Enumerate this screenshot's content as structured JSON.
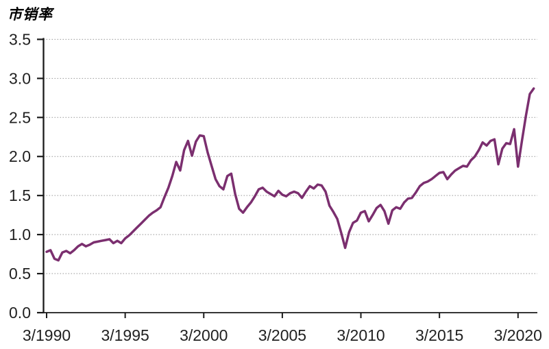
{
  "chart_data": {
    "type": "line",
    "title": "市销率",
    "xlabel": "",
    "ylabel": "",
    "ylim": [
      0.0,
      3.5
    ],
    "y_ticks": [
      0.0,
      0.5,
      1.0,
      1.5,
      2.0,
      2.5,
      3.0,
      3.5
    ],
    "x_tick_labels": [
      "3/1990",
      "3/1995",
      "3/2000",
      "3/2005",
      "3/2010",
      "3/2015",
      "3/2020"
    ],
    "grid": "horizontal-dotted",
    "legend_position": "none",
    "series_name": "市销率",
    "line_color": "#7B2F6F",
    "grid_color": "#9a9a9a",
    "axis_color": "#1a1a1a",
    "x": [
      "3/1990",
      "6/1990",
      "9/1990",
      "12/1990",
      "3/1991",
      "6/1991",
      "9/1991",
      "12/1991",
      "3/1992",
      "6/1992",
      "9/1992",
      "12/1992",
      "3/1993",
      "6/1993",
      "9/1993",
      "12/1993",
      "3/1994",
      "6/1994",
      "9/1994",
      "12/1994",
      "3/1995",
      "6/1995",
      "9/1995",
      "12/1995",
      "3/1996",
      "6/1996",
      "9/1996",
      "12/1996",
      "3/1997",
      "6/1997",
      "9/1997",
      "12/1997",
      "3/1998",
      "6/1998",
      "9/1998",
      "12/1998",
      "3/1999",
      "6/1999",
      "9/1999",
      "12/1999",
      "3/2000",
      "6/2000",
      "9/2000",
      "12/2000",
      "3/2001",
      "6/2001",
      "9/2001",
      "12/2001",
      "3/2002",
      "6/2002",
      "9/2002",
      "12/2002",
      "3/2003",
      "6/2003",
      "9/2003",
      "12/2003",
      "3/2004",
      "6/2004",
      "9/2004",
      "12/2004",
      "3/2005",
      "6/2005",
      "9/2005",
      "12/2005",
      "3/2006",
      "6/2006",
      "9/2006",
      "12/2006",
      "3/2007",
      "6/2007",
      "9/2007",
      "12/2007",
      "3/2008",
      "6/2008",
      "9/2008",
      "12/2008",
      "3/2009",
      "6/2009",
      "9/2009",
      "12/2009",
      "3/2010",
      "6/2010",
      "9/2010",
      "12/2010",
      "3/2011",
      "6/2011",
      "9/2011",
      "12/2011",
      "3/2012",
      "6/2012",
      "9/2012",
      "12/2012",
      "3/2013",
      "6/2013",
      "9/2013",
      "12/2013",
      "3/2014",
      "6/2014",
      "9/2014",
      "12/2014",
      "3/2015",
      "6/2015",
      "9/2015",
      "12/2015",
      "3/2016",
      "6/2016",
      "9/2016",
      "12/2016",
      "3/2017",
      "6/2017",
      "9/2017",
      "12/2017",
      "3/2018",
      "6/2018",
      "9/2018",
      "12/2018",
      "3/2019",
      "6/2019",
      "9/2019",
      "12/2019",
      "3/2020",
      "6/2020",
      "9/2020",
      "12/2020",
      "3/2021"
    ],
    "values": [
      0.78,
      0.8,
      0.69,
      0.67,
      0.77,
      0.79,
      0.76,
      0.8,
      0.85,
      0.88,
      0.85,
      0.87,
      0.9,
      0.91,
      0.92,
      0.93,
      0.94,
      0.89,
      0.92,
      0.89,
      0.95,
      0.99,
      1.04,
      1.09,
      1.14,
      1.19,
      1.24,
      1.28,
      1.31,
      1.35,
      1.48,
      1.6,
      1.75,
      1.93,
      1.82,
      2.08,
      2.2,
      2.01,
      2.19,
      2.27,
      2.26,
      2.05,
      1.88,
      1.71,
      1.62,
      1.58,
      1.75,
      1.78,
      1.52,
      1.33,
      1.28,
      1.35,
      1.41,
      1.49,
      1.58,
      1.6,
      1.55,
      1.52,
      1.49,
      1.56,
      1.51,
      1.49,
      1.53,
      1.55,
      1.53,
      1.47,
      1.55,
      1.62,
      1.59,
      1.64,
      1.63,
      1.55,
      1.37,
      1.29,
      1.2,
      1.02,
      0.83,
      1.03,
      1.15,
      1.18,
      1.28,
      1.3,
      1.17,
      1.25,
      1.34,
      1.38,
      1.3,
      1.14,
      1.31,
      1.35,
      1.33,
      1.41,
      1.46,
      1.47,
      1.54,
      1.62,
      1.66,
      1.68,
      1.71,
      1.75,
      1.79,
      1.8,
      1.71,
      1.77,
      1.82,
      1.85,
      1.88,
      1.87,
      1.95,
      2.0,
      2.08,
      2.18,
      2.14,
      2.2,
      2.22,
      1.9,
      2.1,
      2.17,
      2.16,
      2.35,
      1.87,
      2.2,
      2.52,
      2.8,
      2.87
    ]
  }
}
